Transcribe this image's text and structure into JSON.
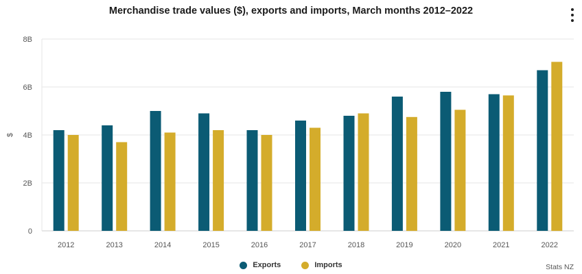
{
  "chart_data": {
    "type": "bar",
    "title": "Merchandise trade values ($), exports and imports, March months 2012–2022",
    "xlabel": "",
    "ylabel": "$",
    "ylim": [
      0,
      8
    ],
    "yticks": [
      0,
      2,
      4,
      6,
      8
    ],
    "ytick_labels": [
      "0",
      "2B",
      "4B",
      "6B",
      "8B"
    ],
    "categories": [
      "2012",
      "2013",
      "2014",
      "2015",
      "2016",
      "2017",
      "2018",
      "2019",
      "2020",
      "2021",
      "2022"
    ],
    "series": [
      {
        "name": "Exports",
        "color": "#0b5b74",
        "values": [
          4.2,
          4.4,
          5.0,
          4.9,
          4.2,
          4.6,
          4.8,
          5.6,
          5.8,
          5.7,
          6.7
        ]
      },
      {
        "name": "Imports",
        "color": "#d4ac2b",
        "values": [
          4.0,
          3.7,
          4.1,
          4.2,
          4.0,
          4.3,
          4.9,
          4.75,
          5.05,
          5.65,
          7.05
        ]
      }
    ],
    "grid": true,
    "legend_position": "bottom-center"
  },
  "menu": {
    "icon": "more-vertical-icon"
  },
  "credits": {
    "text": "Stats NZ"
  }
}
